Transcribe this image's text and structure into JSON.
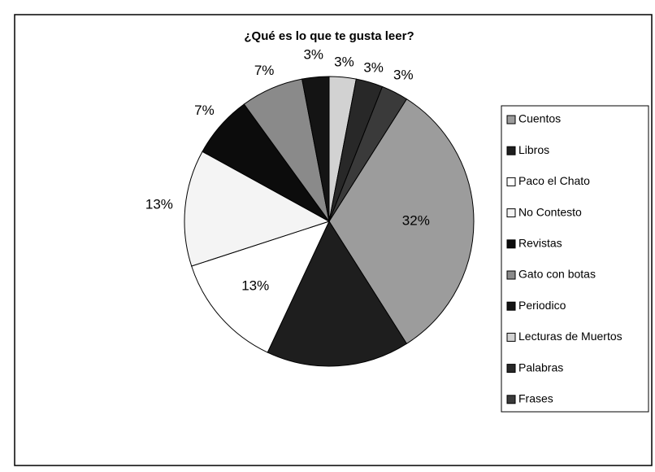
{
  "chart_data": {
    "type": "pie",
    "title": "¿Qué es lo que te gusta leer?",
    "categories": [
      "Cuentos",
      "Libros",
      "Paco el Chato",
      "No Contesto",
      "Revistas",
      "Gato con botas",
      "Periodico",
      "Lecturas de Muertos",
      "Palabras",
      "Frases"
    ],
    "values": [
      32,
      16,
      13,
      13,
      7,
      7,
      3,
      3,
      3,
      3
    ],
    "value_labels": [
      "32%",
      null,
      "13%",
      "13%",
      "7%",
      "7%",
      "3%",
      "3%",
      "3%",
      "3%"
    ],
    "colors": [
      "#9c9c9c",
      "#1e1e1e",
      "#ffffff",
      "#f4f4f4",
      "#0c0c0c",
      "#8a8a8a",
      "#141414",
      "#d2d2d2",
      "#282828",
      "#3a3a3a"
    ],
    "legend": "right"
  }
}
